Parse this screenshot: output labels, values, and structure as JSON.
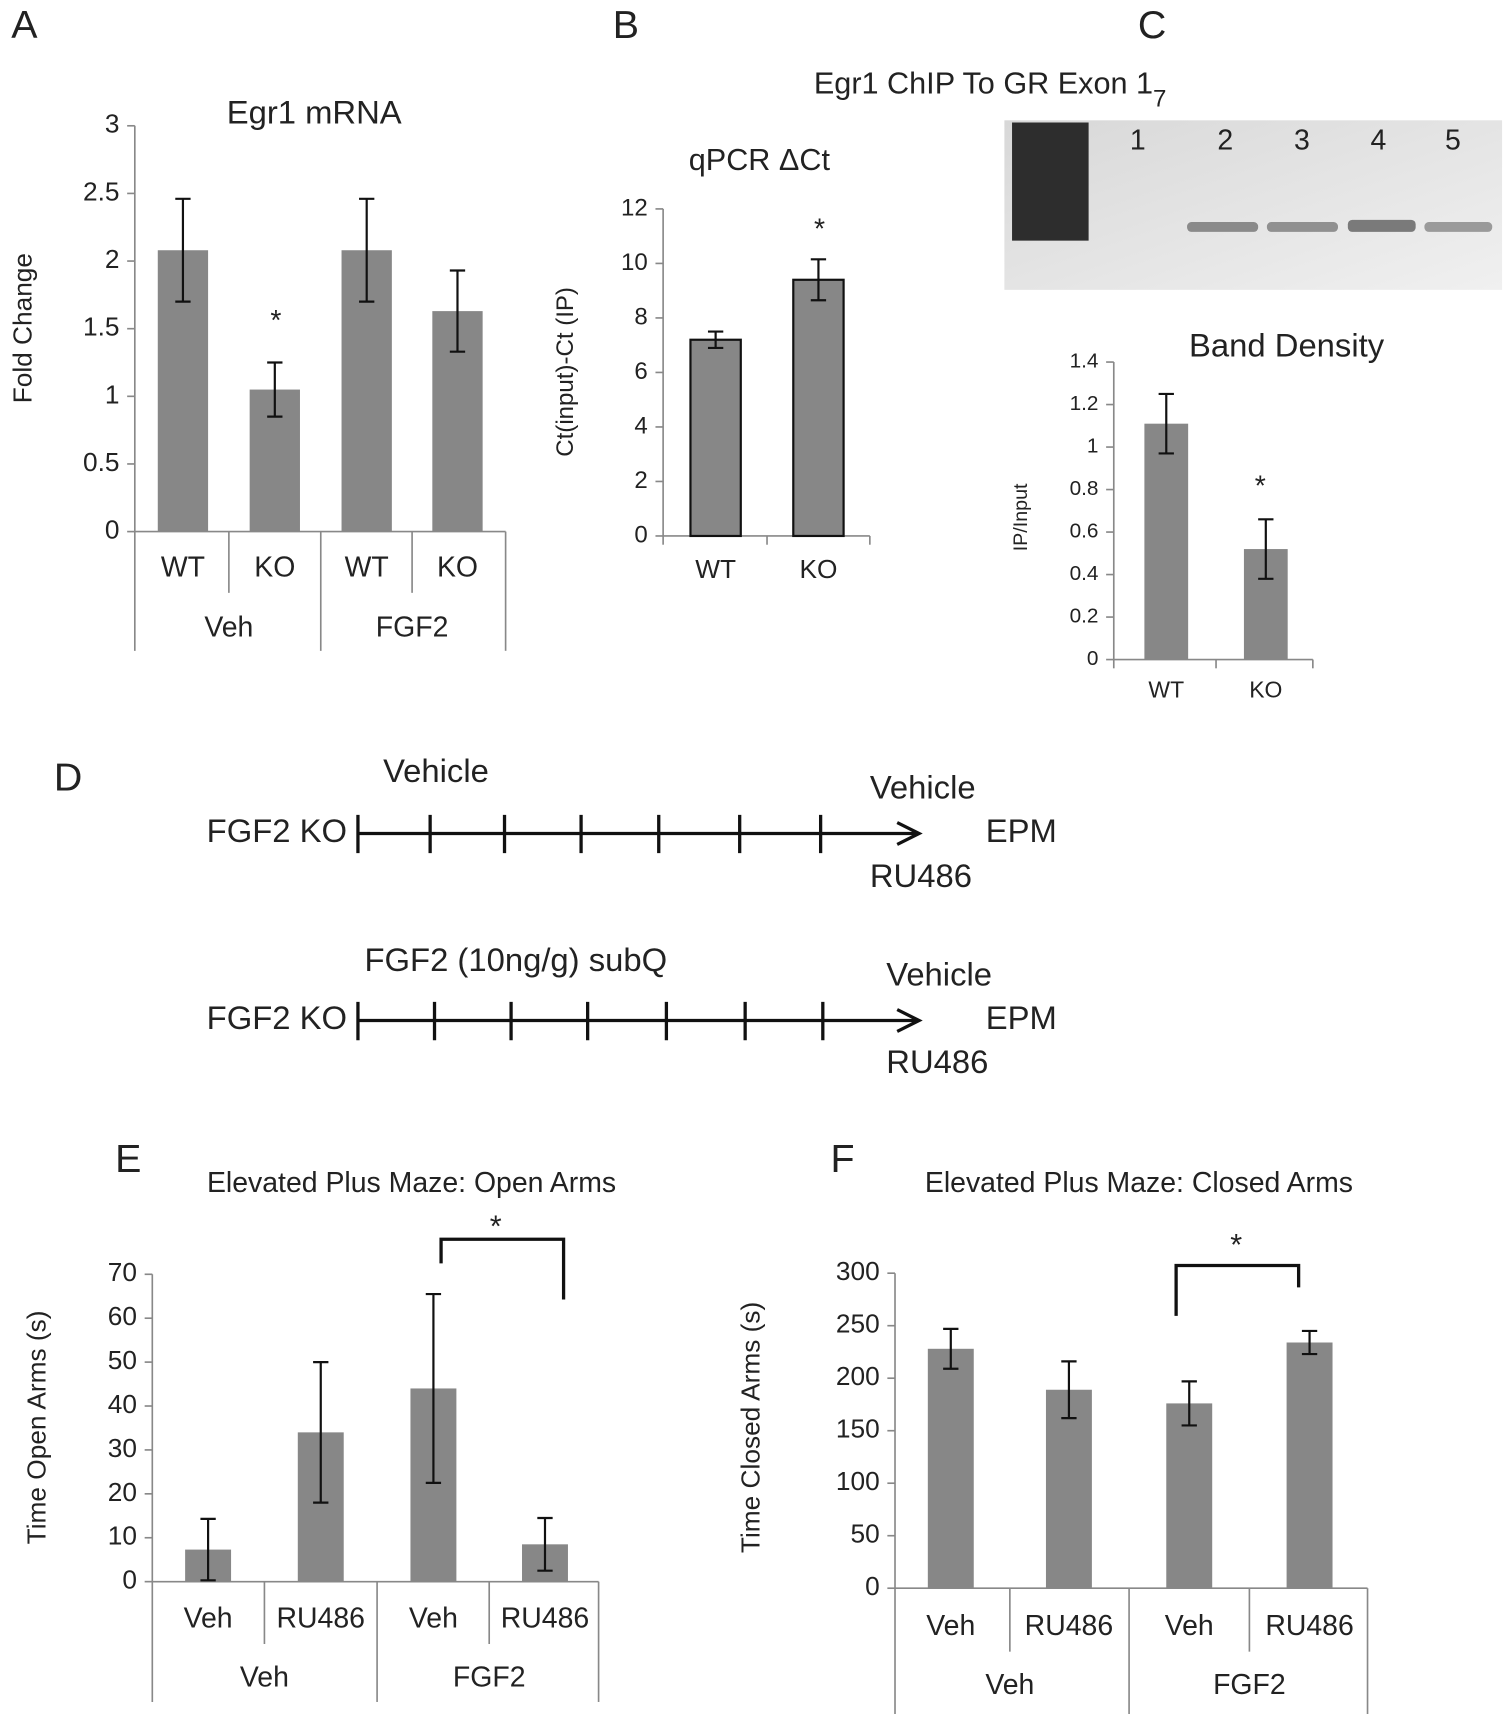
{
  "panel_labels": [
    "A",
    "B",
    "C",
    "D",
    "E",
    "F"
  ],
  "gel": {
    "title": "Egr1 ChIP To GR Exon 1",
    "title_subscript": "7",
    "lanes": [
      "1",
      "2",
      "3",
      "4",
      "5"
    ]
  },
  "timelines": [
    {
      "label": "FGF2 KO",
      "treatment": "Vehicle",
      "endpoints": [
        "Vehicle",
        "RU486"
      ],
      "outcome": "EPM"
    },
    {
      "label": "FGF2 KO",
      "treatment": "FGF2 (10ng/g) subQ",
      "endpoints": [
        "Vehicle",
        "RU486"
      ],
      "outcome": "EPM"
    }
  ],
  "chart_data": [
    {
      "type": "bar",
      "title": "Egr1 mRNA",
      "ylabel": "Fold Change",
      "categories": [
        "WT",
        "KO",
        "WT",
        "KO"
      ],
      "groups": [
        "Veh",
        "FGF2"
      ],
      "values": [
        2.08,
        1.05,
        2.08,
        1.63
      ],
      "errors": [
        0.38,
        0.2,
        0.38,
        0.3
      ],
      "color": "#878787",
      "ylim": [
        0,
        3
      ],
      "yticks": [
        0,
        0.5,
        1,
        1.5,
        2,
        2.5,
        3
      ],
      "annotation": "*"
    },
    {
      "type": "bar",
      "title": "qPCR ΔCt",
      "ylabel": "Ct(input)-Ct (IP)",
      "categories": [
        "WT",
        "KO"
      ],
      "values": [
        7.2,
        9.4
      ],
      "errors": [
        0.3,
        0.75
      ],
      "color": "#878787",
      "ylim": [
        0,
        12
      ],
      "yticks": [
        0,
        2,
        4,
        6,
        8,
        10,
        12
      ],
      "annotation": "*"
    },
    {
      "type": "bar",
      "title": "Band Density",
      "ylabel": "IP/Input",
      "categories": [
        "WT",
        "KO"
      ],
      "values": [
        1.11,
        0.52
      ],
      "errors": [
        0.14,
        0.14
      ],
      "color": "#878787",
      "ylim": [
        0,
        1.4
      ],
      "yticks": [
        0,
        0.2,
        0.4,
        0.6,
        0.8,
        1,
        1.2,
        1.4
      ],
      "annotation": "*"
    },
    {
      "type": "bar",
      "title": "Elevated Plus Maze: Open Arms",
      "ylabel": "Time Open Arms (s)",
      "categories": [
        "Veh",
        "RU486",
        "Veh",
        "RU486"
      ],
      "groups": [
        "Veh",
        "FGF2"
      ],
      "values": [
        7.3,
        34,
        44,
        8.5
      ],
      "errors": [
        7,
        16,
        21.5,
        6
      ],
      "color": "#878787",
      "ylim": [
        0,
        70
      ],
      "yticks": [
        0,
        10,
        20,
        30,
        40,
        50,
        60,
        70
      ],
      "annotation": "*"
    },
    {
      "type": "bar",
      "title": "Elevated Plus Maze: Closed Arms",
      "ylabel": "Time Closed Arms (s)",
      "categories": [
        "Veh",
        "RU486",
        "Veh",
        "RU486"
      ],
      "groups": [
        "Veh",
        "FGF2"
      ],
      "values": [
        228,
        189,
        176,
        234
      ],
      "errors": [
        19,
        27,
        21,
        11
      ],
      "color": "#878787",
      "ylim": [
        0,
        300
      ],
      "yticks": [
        0,
        50,
        100,
        150,
        200,
        250,
        300
      ],
      "annotation": "*"
    }
  ]
}
